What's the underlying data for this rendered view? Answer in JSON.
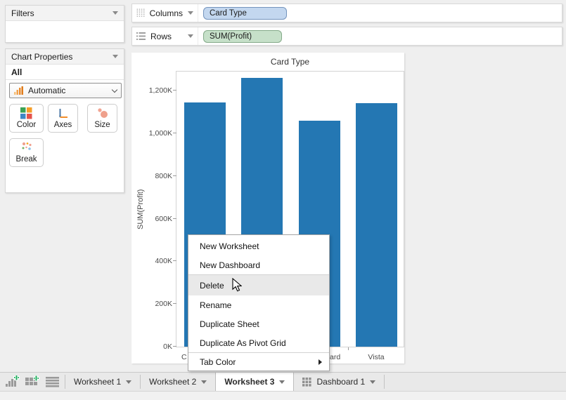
{
  "sidebar": {
    "filters_title": "Filters",
    "chart_properties_title": "Chart Properties",
    "scope_label": "All",
    "mark_type_value": "Automatic",
    "buttons": [
      {
        "label": "Color"
      },
      {
        "label": "Axes"
      },
      {
        "label": "Size"
      },
      {
        "label": "Break"
      }
    ]
  },
  "shelves": {
    "columns_label": "Columns",
    "columns_pill": "Card Type",
    "rows_label": "Rows",
    "rows_pill": "SUM(Profit)"
  },
  "chart_data": {
    "type": "bar",
    "title": "Card Type",
    "ylabel": "SUM(Profit)",
    "ylim": [
      0,
      1296000
    ],
    "grid": false,
    "legend": "none",
    "y_ticks": [
      {
        "label": "0K",
        "value": 0
      },
      {
        "label": "200K",
        "value": 200000
      },
      {
        "label": "400K",
        "value": 400000
      },
      {
        "label": "600K",
        "value": 600000
      },
      {
        "label": "800K",
        "value": 800000
      },
      {
        "label": "1,000K",
        "value": 1000000
      },
      {
        "label": "1,200K",
        "value": 1200000
      }
    ],
    "values": [
      1145000,
      1260000,
      1060000,
      1140000
    ],
    "x_labels_visible": [
      "C",
      "ard",
      "Vista"
    ],
    "x_labels_note": "category labels partially occluded by context menu",
    "bar_color": "#2477b3"
  },
  "context_menu": {
    "items": [
      "New Worksheet",
      "New Dashboard",
      "Delete",
      "Rename",
      "Duplicate Sheet",
      "Duplicate As Pivot Grid",
      "Tab Color"
    ],
    "highlighted_item": "Delete",
    "submenu_item": "Tab Color"
  },
  "tabbar": {
    "tabs": [
      {
        "label": "Worksheet 1",
        "active": false
      },
      {
        "label": "Worksheet 2",
        "active": false
      },
      {
        "label": "Worksheet 3",
        "active": true
      },
      {
        "label": "Dashboard 1",
        "active": false
      }
    ]
  }
}
